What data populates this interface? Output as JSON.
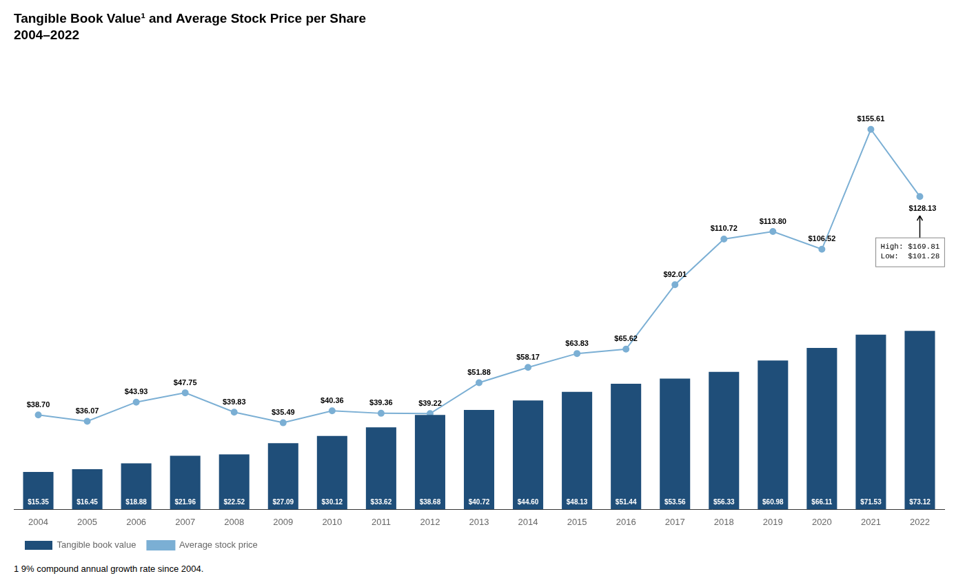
{
  "chart_data": {
    "type": "bar",
    "title": "Tangible Book Value¹ and Average Stock Price per Share",
    "subtitle": "2004–2022",
    "footnote": "1   9% compound annual growth rate since 2004.",
    "annotations": [
      "High: $169.81",
      "Low:  $101.28"
    ],
    "categories": [
      "2004",
      "2005",
      "2006",
      "2007",
      "2008",
      "2009",
      "2010",
      "2011",
      "2012",
      "2013",
      "2014",
      "2015",
      "2016",
      "2017",
      "2018",
      "2019",
      "2020",
      "2021",
      "2022"
    ],
    "series": [
      {
        "name": "Tangible book value",
        "type": "bar",
        "color": "#1F4E79",
        "values": [
          15.35,
          16.45,
          18.88,
          21.96,
          22.52,
          27.09,
          30.12,
          33.62,
          38.68,
          40.72,
          44.6,
          48.13,
          51.44,
          53.56,
          56.33,
          60.98,
          66.11,
          71.53,
          73.12
        ],
        "value_labels": [
          "$15.35",
          "$16.45",
          "$18.88",
          "$21.96",
          "$22.52",
          "$27.09",
          "$30.12",
          "$33.62",
          "$38.68",
          "$40.72",
          "$44.60",
          "$48.13",
          "$51.44",
          "$53.56",
          "$56.33",
          "$60.98",
          "$66.11",
          "$71.53",
          "$73.12"
        ]
      },
      {
        "name": "Average stock price",
        "type": "line",
        "color": "#7BAFD4",
        "marker": "circle",
        "line_style": "solid",
        "values": [
          38.7,
          36.07,
          43.93,
          47.75,
          39.83,
          35.49,
          40.36,
          39.36,
          39.22,
          51.88,
          58.17,
          63.83,
          65.62,
          92.01,
          110.72,
          113.8,
          106.52,
          155.61,
          128.13
        ],
        "value_labels": [
          "$38.70",
          "$36.07",
          "$43.93",
          "$47.75",
          "$39.83",
          "$35.49",
          "$40.36",
          "$39.36",
          "$39.22",
          "$51.88",
          "$58.17",
          "$63.83",
          "$65.62",
          "$92.01",
          "$110.72",
          "$113.80",
          "$106.52",
          "$155.61",
          "$128.13"
        ]
      }
    ],
    "ylim": [
      0,
      185
    ],
    "tick_labels": "x",
    "grid": false,
    "legend": "bottom left",
    "data_labels": true
  }
}
